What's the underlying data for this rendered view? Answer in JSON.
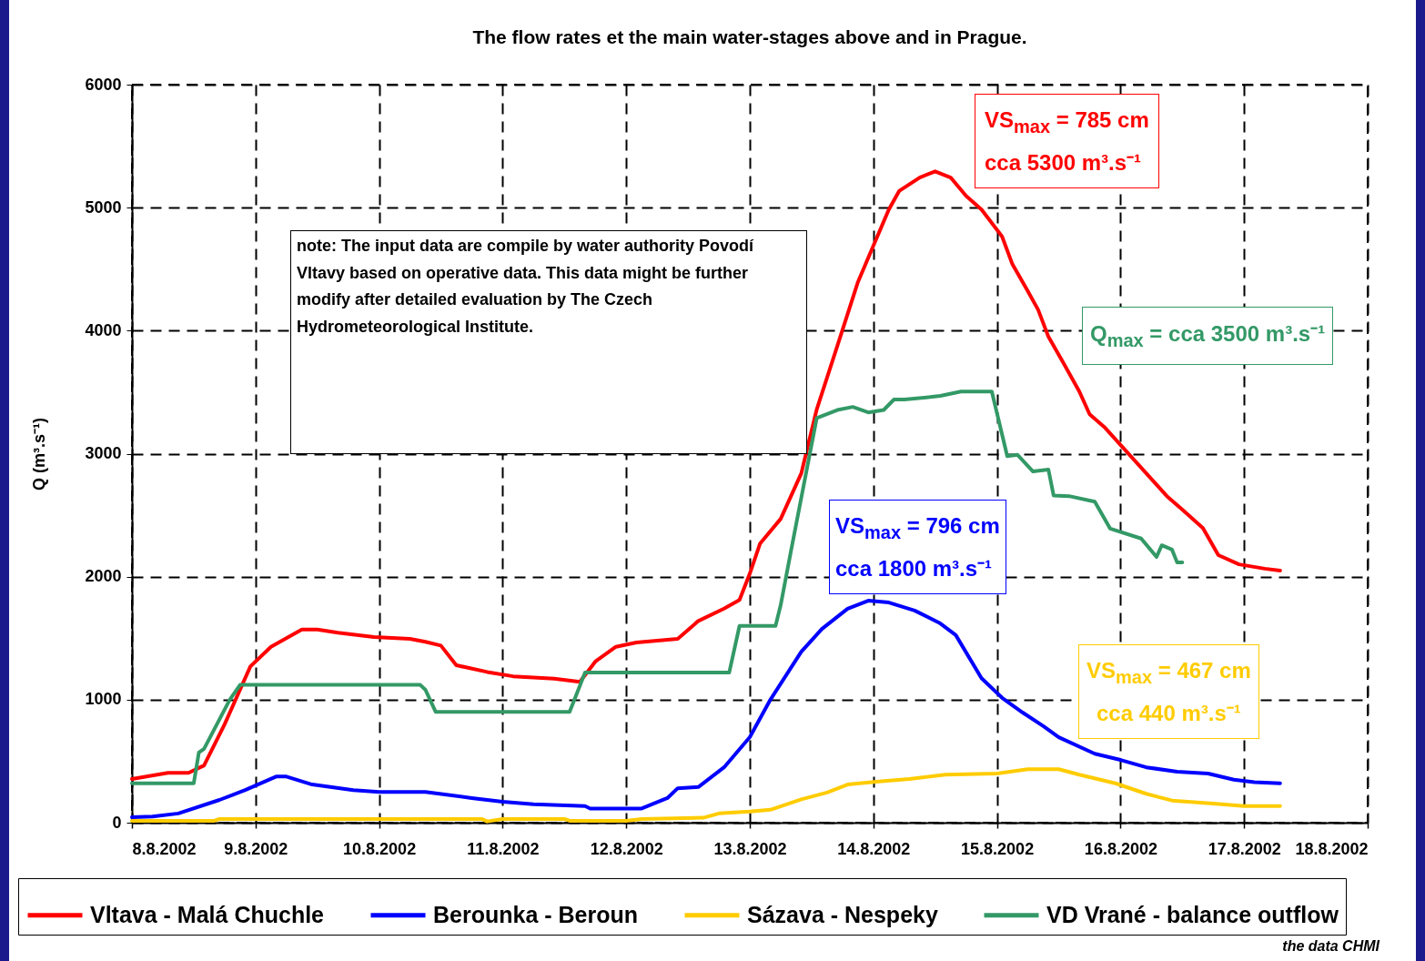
{
  "chart_data": {
    "type": "line",
    "title": "The flow rates et the main water-stages above and in Prague.",
    "ylabel": "Q (m³.s⁻¹)",
    "xlim": [
      "2002-08-08",
      "2002-08-18"
    ],
    "xticks": [
      {
        "value": "2002-08-08",
        "label": "8.8.2002"
      },
      {
        "value": "2002-08-09",
        "label": "9.8.2002"
      },
      {
        "value": "2002-08-10",
        "label": "10.8.2002"
      },
      {
        "value": "2002-08-11",
        "label": "11.8.2002"
      },
      {
        "value": "2002-08-12",
        "label": "12.8.2002"
      },
      {
        "value": "2002-08-13",
        "label": "13.8.2002"
      },
      {
        "value": "2002-08-14",
        "label": "14.8.2002"
      },
      {
        "value": "2002-08-15",
        "label": "15.8.2002"
      },
      {
        "value": "2002-08-16",
        "label": "16.8.2002"
      },
      {
        "value": "2002-08-17",
        "label": "17.8.2002"
      },
      {
        "value": "2002-08-18",
        "label": "18.8.2002"
      }
    ],
    "ylim": [
      0,
      6000
    ],
    "yticks": [
      0,
      1000,
      2000,
      3000,
      4000,
      5000,
      6000
    ],
    "grid": true,
    "legend": "bottom",
    "series": [
      {
        "name": "Vltava - Malá Chuchle",
        "color": "#ff0000",
        "x": [
          "2002-08-08T00:00",
          "2002-08-08T07:00",
          "2002-08-08T11:00",
          "2002-08-08T14:00",
          "2002-08-08T18:00",
          "2002-08-08T23:00",
          "2002-08-09T03:00",
          "2002-08-09T09:00",
          "2002-08-09T12:00",
          "2002-08-09T16:00",
          "2002-08-09T23:00",
          "2002-08-10T06:00",
          "2002-08-10T09:00",
          "2002-08-10T12:00",
          "2002-08-10T15:00",
          "2002-08-10T21:00",
          "2002-08-11T02:00",
          "2002-08-11T10:00",
          "2002-08-11T15:00",
          "2002-08-11T18:00",
          "2002-08-11T22:00",
          "2002-08-12T02:00",
          "2002-08-12T10:00",
          "2002-08-12T14:00",
          "2002-08-12T19:00",
          "2002-08-12T22:00",
          "2002-08-13T00:00",
          "2002-08-13T02:00",
          "2002-08-13T06:00",
          "2002-08-13T10:00",
          "2002-08-13T13:00",
          "2002-08-13T17:00",
          "2002-08-13T21:00",
          "2002-08-14T00:00",
          "2002-08-14T03:00",
          "2002-08-14T05:00",
          "2002-08-14T09:00",
          "2002-08-14T12:00",
          "2002-08-14T15:00",
          "2002-08-14T18:00",
          "2002-08-14T21:00",
          "2002-08-15T01:00",
          "2002-08-15T03:00",
          "2002-08-15T06:00",
          "2002-08-15T08:00",
          "2002-08-15T10:00",
          "2002-08-15T13:00",
          "2002-08-15T16:00",
          "2002-08-15T18:00",
          "2002-08-15T21:00",
          "2002-08-16T01:00",
          "2002-08-16T05:00",
          "2002-08-16T09:00",
          "2002-08-16T12:00",
          "2002-08-16T16:00",
          "2002-08-16T19:00",
          "2002-08-16T23:00",
          "2002-08-17T04:00",
          "2002-08-17T07:00"
        ],
        "values": [
          355,
          405,
          405,
          465,
          800,
          1270,
          1430,
          1570,
          1570,
          1545,
          1510,
          1495,
          1470,
          1440,
          1280,
          1225,
          1190,
          1170,
          1145,
          1310,
          1430,
          1465,
          1495,
          1640,
          1740,
          1810,
          2025,
          2270,
          2470,
          2840,
          3360,
          3875,
          4395,
          4690,
          4985,
          5135,
          5245,
          5295,
          5245,
          5095,
          4985,
          4765,
          4540,
          4320,
          4170,
          3950,
          3730,
          3505,
          3320,
          3210,
          3025,
          2840,
          2655,
          2545,
          2395,
          2175,
          2100,
          2065,
          2050
        ]
      },
      {
        "name": "Berounka - Beroun",
        "color": "#0000ff",
        "x": [
          "2002-08-08T00:00",
          "2002-08-08T04:00",
          "2002-08-08T09:00",
          "2002-08-08T17:00",
          "2002-08-08T22:00",
          "2002-08-09T04:00",
          "2002-08-09T06:00",
          "2002-08-09T11:00",
          "2002-08-09T19:00",
          "2002-08-10T00:00",
          "2002-08-10T09:00",
          "2002-08-10T18:00",
          "2002-08-11T00:00",
          "2002-08-11T06:00",
          "2002-08-11T16:00",
          "2002-08-11T17:00",
          "2002-08-12T03:00",
          "2002-08-12T08:00",
          "2002-08-12T10:00",
          "2002-08-12T14:00",
          "2002-08-12T19:00",
          "2002-08-13T00:00",
          "2002-08-13T04:00",
          "2002-08-13T10:00",
          "2002-08-13T14:00",
          "2002-08-13T19:00",
          "2002-08-13T23:00",
          "2002-08-14T03:00",
          "2002-08-14T08:00",
          "2002-08-14T13:00",
          "2002-08-14T16:00",
          "2002-08-14T21:00",
          "2002-08-15T01:00",
          "2002-08-15T05:00",
          "2002-08-15T09:00",
          "2002-08-15T12:00",
          "2002-08-15T19:00",
          "2002-08-16T00:00",
          "2002-08-16T05:00",
          "2002-08-16T11:00",
          "2002-08-16T17:00",
          "2002-08-16T22:00",
          "2002-08-17T02:00",
          "2002-08-17T07:00"
        ],
        "values": [
          45,
          50,
          75,
          185,
          265,
          375,
          375,
          310,
          265,
          250,
          250,
          200,
          170,
          150,
          135,
          115,
          115,
          200,
          280,
          290,
          450,
          695,
          1000,
          1390,
          1575,
          1740,
          1805,
          1790,
          1725,
          1620,
          1525,
          1175,
          1015,
          895,
          785,
          695,
          560,
          510,
          450,
          415,
          400,
          350,
          330,
          320
        ]
      },
      {
        "name": "Sázava - Nespeky",
        "color": "#ffcc00",
        "x": [
          "2002-08-08T00:00",
          "2002-08-08T16:00",
          "2002-08-08T17:00",
          "2002-08-10T20:00",
          "2002-08-10T21:00",
          "2002-08-11T00:00",
          "2002-08-11T12:00",
          "2002-08-11T13:00",
          "2002-08-12T00:00",
          "2002-08-12T03:00",
          "2002-08-12T15:00",
          "2002-08-12T18:00",
          "2002-08-13T00:00",
          "2002-08-13T04:00",
          "2002-08-13T10:00",
          "2002-08-13T15:00",
          "2002-08-13T19:00",
          "2002-08-14T01:00",
          "2002-08-14T07:00",
          "2002-08-14T14:00",
          "2002-08-15T00:00",
          "2002-08-15T06:00",
          "2002-08-15T12:00",
          "2002-08-15T16:00",
          "2002-08-15T23:00",
          "2002-08-16T05:00",
          "2002-08-16T10:00",
          "2002-08-16T18:00",
          "2002-08-17T00:00",
          "2002-08-17T07:00"
        ],
        "values": [
          15,
          15,
          30,
          30,
          10,
          30,
          30,
          15,
          15,
          30,
          40,
          75,
          90,
          105,
          190,
          245,
          310,
          335,
          355,
          390,
          400,
          435,
          435,
          390,
          320,
          235,
          180,
          155,
          135,
          135
        ]
      },
      {
        "name": "VD Vrané - balance outflow",
        "color": "#339966",
        "x": [
          "2002-08-08T00:00",
          "2002-08-08T12:00",
          "2002-08-08T13:00",
          "2002-08-08T14:00",
          "2002-08-08T19:00",
          "2002-08-08T21:00",
          "2002-08-10T08:00",
          "2002-08-10T09:00",
          "2002-08-10T11:00",
          "2002-08-11T13:00",
          "2002-08-11T16:00",
          "2002-08-12T20:00",
          "2002-08-12T22:00",
          "2002-08-13T05:00",
          "2002-08-13T06:00",
          "2002-08-13T08:00",
          "2002-08-13T13:00",
          "2002-08-13T17:00",
          "2002-08-13T20:00",
          "2002-08-13T23:00",
          "2002-08-14T02:00",
          "2002-08-14T04:00",
          "2002-08-14T06:00",
          "2002-08-14T11:00",
          "2002-08-14T13:00",
          "2002-08-14T17:00",
          "2002-08-14T23:00",
          "2002-08-15T02:00",
          "2002-08-15T04:00",
          "2002-08-15T07:00",
          "2002-08-15T10:00",
          "2002-08-15T11:00",
          "2002-08-15T14:00",
          "2002-08-15T19:00",
          "2002-08-15T22:00",
          "2002-08-16T04:00",
          "2002-08-16T07:00",
          "2002-08-16T08:00",
          "2002-08-16T10:00",
          "2002-08-16T11:00",
          "2002-08-16T12:00"
        ],
        "values": [
          320,
          320,
          570,
          600,
          1000,
          1120,
          1120,
          1080,
          900,
          900,
          1220,
          1220,
          1600,
          1600,
          1770,
          2210,
          3290,
          3355,
          3380,
          3335,
          3355,
          3440,
          3440,
          3460,
          3470,
          3505,
          3505,
          2980,
          2990,
          2855,
          2870,
          2660,
          2655,
          2610,
          2390,
          2310,
          2160,
          2255,
          2220,
          2115,
          2115
        ]
      }
    ],
    "annotations": [
      "VS$_{max}$ = 785 cm\ncca 5300 m³.s⁻¹",
      "Q$_{max}$ = cca 3500 m³.s⁻¹",
      "VS$_{max}$ = 796 cm\ncca 1800 m³.s⁻¹",
      "VS$_{max}$ = 467 cm\ncca 440 m³.s⁻¹",
      "note: The input data are compile by water authority Povodí Vltavy based on operative data. This data might be further modify after detailed evaluation by The Czech Hydrometeorological Institute.",
      "the data CHMI"
    ]
  }
}
